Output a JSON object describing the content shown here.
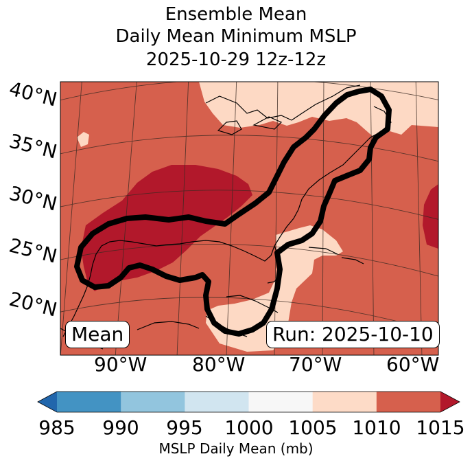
{
  "title": {
    "line1": "Ensemble Mean",
    "line2": "Daily Mean Minimum MSLP",
    "line3": "2025-10-29 12z-12z"
  },
  "map": {
    "lat_labels": [
      "40°N",
      "35°N",
      "30°N",
      "25°N",
      "20°N"
    ],
    "lon_labels": [
      "90°W",
      "80°W",
      "70°W",
      "60°W"
    ],
    "badge_left": "Mean",
    "badge_right": "Run: 2025-10-10",
    "field_colors": {
      "1005_1010": "#fdd9c4",
      "1010_1015": "#d6604d",
      "above_1015": "#b2182b"
    }
  },
  "colorbar": {
    "label": "MSLP Daily Mean (mb)",
    "ticks": [
      "985",
      "990",
      "995",
      "1000",
      "1005",
      "1010",
      "1015"
    ],
    "colors": [
      "#4393c3",
      "#92c5de",
      "#d1e5f0",
      "#f7f7f7",
      "#fddbc7",
      "#d6604d"
    ],
    "under_color": "#2166ac",
    "over_color": "#b2182b"
  }
}
